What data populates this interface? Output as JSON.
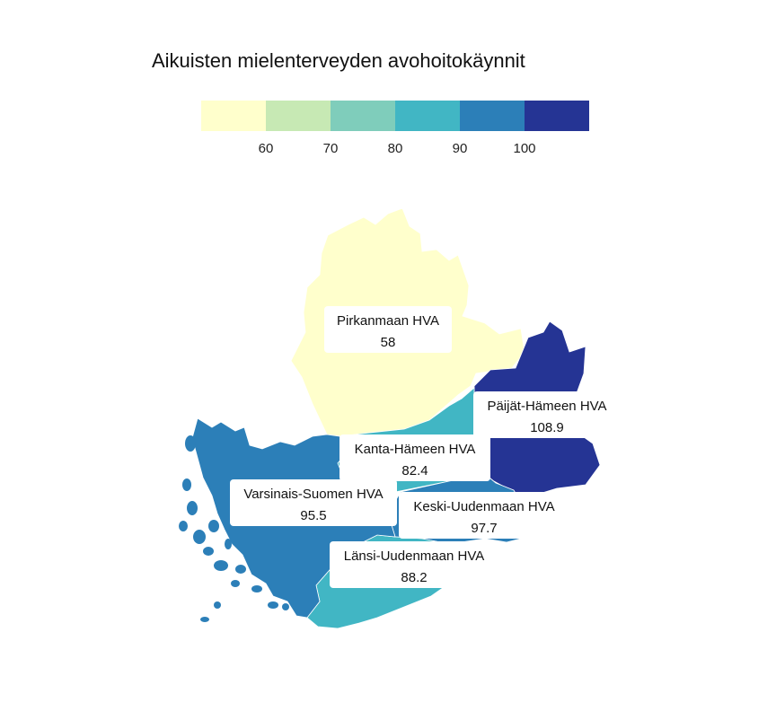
{
  "title": "Aikuisten mielenterveyden avohoitokäynnit",
  "legend": {
    "colors": [
      "#ffffcc",
      "#c7e9b4",
      "#7fcdbb",
      "#41b6c4",
      "#2c7fb8",
      "#253494"
    ],
    "ticks": [
      "60",
      "70",
      "80",
      "90",
      "100"
    ]
  },
  "regions": [
    {
      "key": "pirkanmaa",
      "name": "Pirkanmaan HVA",
      "value": "58",
      "color": "#ffffcc"
    },
    {
      "key": "paijat-hame",
      "name": "Päijät-Hämeen HVA",
      "value": "108.9",
      "color": "#253494"
    },
    {
      "key": "kanta-hame",
      "name": "Kanta-Hämeen HVA",
      "value": "82.4",
      "color": "#41b6c4"
    },
    {
      "key": "varsinais-suomi",
      "name": "Varsinais-Suomen HVA",
      "value": "95.5",
      "color": "#2c7fb8"
    },
    {
      "key": "keski-uusimaa",
      "name": "Keski-Uudenmaan HVA",
      "value": "97.7",
      "color": "#2c7fb8"
    },
    {
      "key": "lansi-uusimaa",
      "name": "Länsi-Uudenmaan HVA",
      "value": "88.2",
      "color": "#41b6c4"
    }
  ]
}
